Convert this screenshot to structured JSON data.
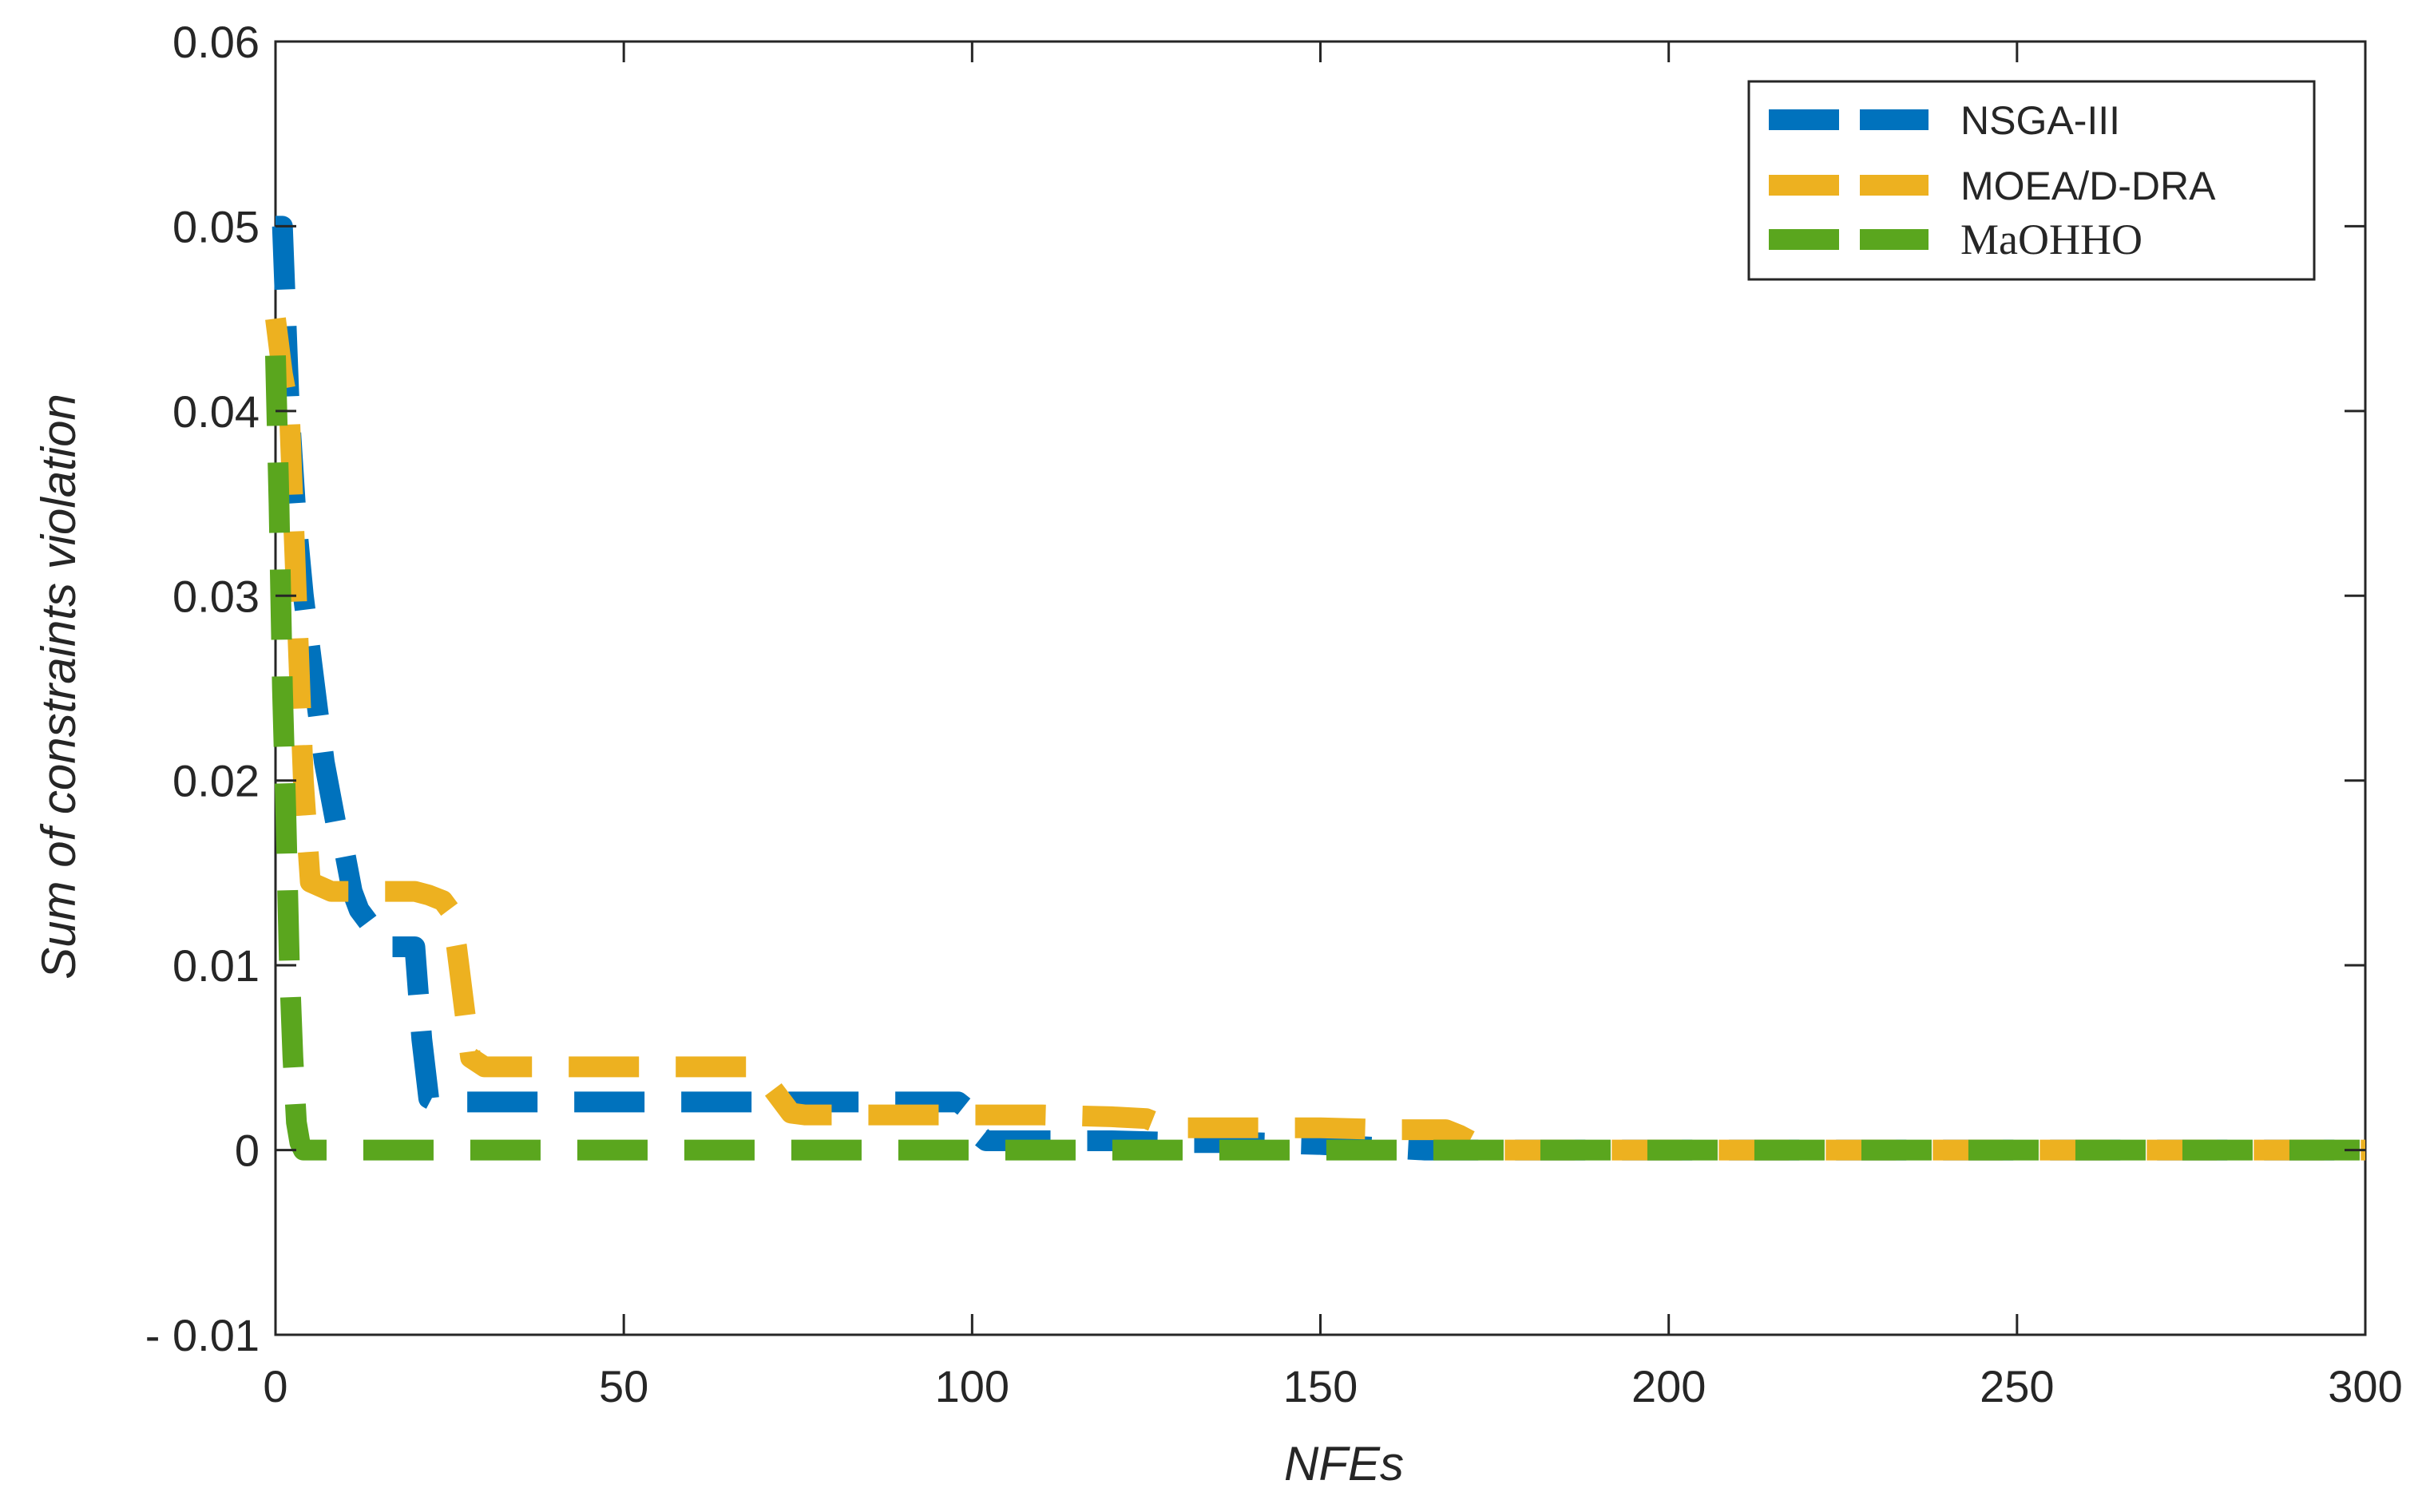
{
  "chart_data": {
    "type": "line",
    "title": "",
    "xlabel": "NFEs",
    "ylabel": "Sum of constraints violation",
    "xlim": [
      0,
      300
    ],
    "ylim": [
      -0.01,
      0.06
    ],
    "x_ticks": [
      0,
      50,
      100,
      150,
      200,
      250,
      300
    ],
    "x_tick_labels": [
      "0",
      "50",
      "100",
      "150",
      "200",
      "250",
      "300"
    ],
    "y_ticks": [
      -0.01,
      0,
      0.01,
      0.02,
      0.03,
      0.04,
      0.05,
      0.06
    ],
    "y_tick_labels": [
      "- 0.01",
      "0",
      "0.01",
      "0.02",
      "0.03",
      "0.04",
      "0.05",
      "0.06"
    ],
    "grid": false,
    "legend_position": "top-right",
    "line_style": "dashed",
    "series": [
      {
        "name": "NSGA-III",
        "color": "#0072BD",
        "x": [
          0,
          1,
          2,
          3,
          4,
          5,
          6,
          7,
          8,
          9,
          10,
          11,
          12,
          13,
          14,
          15,
          16,
          17,
          18,
          19,
          20,
          21,
          22,
          23,
          25,
          30,
          40,
          50,
          60,
          70,
          80,
          90,
          95,
          98,
          100,
          101,
          102,
          105,
          110,
          120,
          130,
          140,
          150,
          160,
          165,
          170,
          175,
          180,
          200,
          250,
          300
        ],
        "values": [
          0.05,
          0.05,
          0.04,
          0.034,
          0.03,
          0.027,
          0.024,
          0.021,
          0.019,
          0.017,
          0.016,
          0.014,
          0.013,
          0.0125,
          0.012,
          0.0115,
          0.011,
          0.011,
          0.011,
          0.011,
          0.011,
          0.006,
          0.0028,
          0.0026,
          0.0026,
          0.0026,
          0.0026,
          0.0026,
          0.0026,
          0.0026,
          0.0026,
          0.0026,
          0.0026,
          0.0026,
          0.002,
          0.0008,
          0.0005,
          0.0005,
          0.0005,
          0.0005,
          0.0004,
          0.0004,
          0.0003,
          0.0001,
          0.0,
          0.0,
          0.0,
          0.0,
          0.0,
          0.0,
          0.0
        ]
      },
      {
        "name": "MOEA/D-DRA",
        "color": "#EDB120",
        "x": [
          0,
          1,
          2,
          3,
          4,
          5,
          8,
          10,
          15,
          20,
          22,
          24,
          25,
          26,
          27,
          28,
          30,
          40,
          50,
          60,
          65,
          68,
          70,
          72,
          74,
          76,
          80,
          90,
          100,
          110,
          120,
          125,
          127,
          130,
          140,
          150,
          160,
          168,
          170,
          172,
          175,
          180,
          200,
          250,
          300
        ],
        "values": [
          0.045,
          0.042,
          0.04,
          0.03,
          0.02,
          0.0145,
          0.014,
          0.014,
          0.014,
          0.014,
          0.0138,
          0.0135,
          0.013,
          0.011,
          0.008,
          0.005,
          0.0045,
          0.0045,
          0.0045,
          0.0045,
          0.0045,
          0.0045,
          0.004,
          0.003,
          0.002,
          0.0019,
          0.0019,
          0.0019,
          0.0019,
          0.0019,
          0.0018,
          0.0017,
          0.0014,
          0.0012,
          0.0012,
          0.0012,
          0.0011,
          0.0011,
          0.0008,
          0.0004,
          0.0,
          0.0,
          0.0,
          0.0,
          0.0
        ]
      },
      {
        "name": "MaOHHO",
        "color": "#5AA61E",
        "x": [
          0,
          0.5,
          1,
          1.5,
          2,
          2.5,
          3,
          3.5,
          4,
          5,
          10,
          50,
          100,
          150,
          200,
          250,
          300
        ],
        "values": [
          0.043,
          0.035,
          0.025,
          0.018,
          0.01,
          0.005,
          0.0015,
          0.0004,
          0.0,
          0.0,
          0.0,
          0.0,
          0.0,
          0.0,
          0.0,
          0.0,
          0.0
        ]
      }
    ]
  }
}
